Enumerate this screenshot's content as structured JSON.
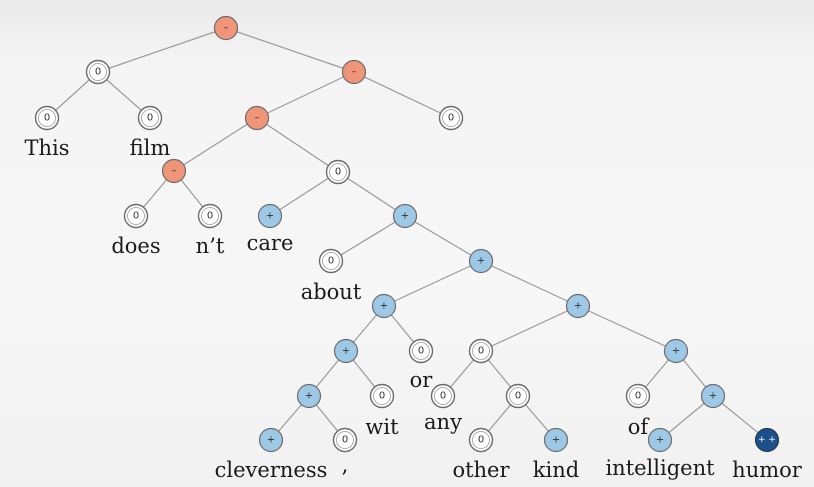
{
  "diagram": {
    "sentiment_symbols": {
      "neg": "–",
      "zero": "0",
      "pos": "+",
      "pp": "+ +"
    },
    "words": [
      {
        "id": "w-this",
        "text": "This"
      },
      {
        "id": "w-film",
        "text": "film"
      },
      {
        "id": "w-does",
        "text": "does"
      },
      {
        "id": "w-nt",
        "text": "n’t"
      },
      {
        "id": "w-care",
        "text": "care"
      },
      {
        "id": "w-about",
        "text": "about"
      },
      {
        "id": "w-or",
        "text": "or"
      },
      {
        "id": "w-wit",
        "text": "wit"
      },
      {
        "id": "w-any",
        "text": "any"
      },
      {
        "id": "w-of",
        "text": "of"
      },
      {
        "id": "w-cleverness",
        "text": "cleverness"
      },
      {
        "id": "w-comma",
        "text": ","
      },
      {
        "id": "w-other",
        "text": "other"
      },
      {
        "id": "w-kind",
        "text": "kind"
      },
      {
        "id": "w-intelligent",
        "text": "intelligent"
      },
      {
        "id": "w-humor",
        "text": "humor"
      }
    ],
    "nodes": [
      {
        "id": "root",
        "sentiment": "neg"
      },
      {
        "id": "this-film",
        "sentiment": "zero"
      },
      {
        "id": "this",
        "sentiment": "zero"
      },
      {
        "id": "film",
        "sentiment": "zero"
      },
      {
        "id": "rest-period",
        "sentiment": "neg"
      },
      {
        "id": "vp",
        "sentiment": "neg"
      },
      {
        "id": "period",
        "sentiment": "zero"
      },
      {
        "id": "does-nt",
        "sentiment": "neg"
      },
      {
        "id": "does",
        "sentiment": "zero"
      },
      {
        "id": "nt",
        "sentiment": "zero"
      },
      {
        "id": "care-pp",
        "sentiment": "zero"
      },
      {
        "id": "care",
        "sentiment": "pos"
      },
      {
        "id": "about-np",
        "sentiment": "pos"
      },
      {
        "id": "about",
        "sentiment": "zero"
      },
      {
        "id": "np",
        "sentiment": "pos"
      },
      {
        "id": "cleverness-or-wit",
        "sentiment": "pos"
      },
      {
        "id": "or",
        "sentiment": "zero"
      },
      {
        "id": "cleverness-wit",
        "sentiment": "pos"
      },
      {
        "id": "wit",
        "sentiment": "zero"
      },
      {
        "id": "cleverness-comma",
        "sentiment": "pos"
      },
      {
        "id": "cleverness",
        "sentiment": "pos"
      },
      {
        "id": "comma",
        "sentiment": "zero"
      },
      {
        "id": "any-other-kind-humor",
        "sentiment": "pos"
      },
      {
        "id": "any-other-kind",
        "sentiment": "zero"
      },
      {
        "id": "any",
        "sentiment": "zero"
      },
      {
        "id": "other-kind",
        "sentiment": "zero"
      },
      {
        "id": "other",
        "sentiment": "zero"
      },
      {
        "id": "kind",
        "sentiment": "pos"
      },
      {
        "id": "of-intelligent-humor",
        "sentiment": "pos"
      },
      {
        "id": "of",
        "sentiment": "zero"
      },
      {
        "id": "intelligent-humor",
        "sentiment": "pos"
      },
      {
        "id": "intelligent",
        "sentiment": "pos"
      },
      {
        "id": "humor",
        "sentiment": "pp"
      }
    ],
    "edges": [
      [
        "root",
        "this-film"
      ],
      [
        "root",
        "rest-period"
      ],
      [
        "this-film",
        "this"
      ],
      [
        "this-film",
        "film"
      ],
      [
        "rest-period",
        "vp"
      ],
      [
        "rest-period",
        "period"
      ],
      [
        "vp",
        "does-nt"
      ],
      [
        "vp",
        "care-pp"
      ],
      [
        "does-nt",
        "does"
      ],
      [
        "does-nt",
        "nt"
      ],
      [
        "care-pp",
        "care"
      ],
      [
        "care-pp",
        "about-np"
      ],
      [
        "about-np",
        "about"
      ],
      [
        "about-np",
        "np"
      ],
      [
        "np",
        "cleverness-or-wit"
      ],
      [
        "np",
        "any-other-kind-humor"
      ],
      [
        "cleverness-or-wit",
        "cleverness-wit"
      ],
      [
        "cleverness-or-wit",
        "or"
      ],
      [
        "cleverness-wit",
        "cleverness-comma"
      ],
      [
        "cleverness-wit",
        "wit"
      ],
      [
        "cleverness-comma",
        "cleverness"
      ],
      [
        "cleverness-comma",
        "comma"
      ],
      [
        "any-other-kind-humor",
        "any-other-kind"
      ],
      [
        "any-other-kind-humor",
        "of-intelligent-humor"
      ],
      [
        "any-other-kind",
        "any"
      ],
      [
        "any-other-kind",
        "other-kind"
      ],
      [
        "other-kind",
        "other"
      ],
      [
        "other-kind",
        "kind"
      ],
      [
        "of-intelligent-humor",
        "of"
      ],
      [
        "of-intelligent-humor",
        "intelligent-humor"
      ],
      [
        "intelligent-humor",
        "intelligent"
      ],
      [
        "intelligent-humor",
        "humor"
      ]
    ]
  }
}
